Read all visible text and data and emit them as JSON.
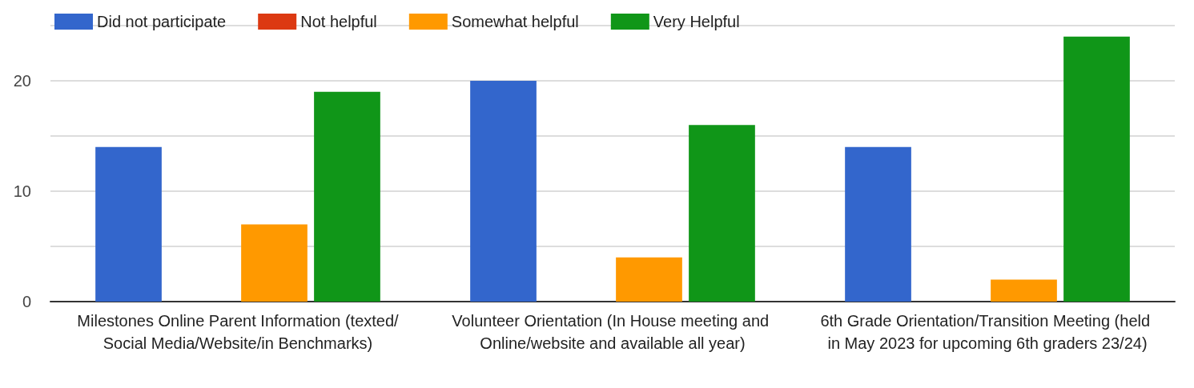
{
  "chart_data": {
    "type": "bar",
    "categories": [
      "Milestones Online Parent Information (texted/Social Media/Website/in Benchmarks)",
      "Volunteer Orientation (In House meeting and Online/website and available all year)",
      "6th Grade Orientation/Transition Meeting (held in May 2023 for upcoming 6th graders 23/24)"
    ],
    "series": [
      {
        "name": "Did not participate",
        "color": "#3366cc",
        "values": [
          14,
          20,
          14
        ]
      },
      {
        "name": "Not helpful",
        "color": "#dc3912",
        "values": [
          0,
          0,
          0
        ]
      },
      {
        "name": "Somewhat helpful",
        "color": "#ff9900",
        "values": [
          7,
          4,
          2
        ]
      },
      {
        "name": "Very Helpful",
        "color": "#109618",
        "values": [
          19,
          16,
          24
        ]
      }
    ],
    "ylim": [
      0,
      25
    ],
    "yticks": [
      0,
      {
        "value": 5,
        "label": null
      },
      10,
      {
        "value": 15,
        "label": null
      },
      20,
      {
        "value": 25,
        "label": null
      }
    ],
    "grid": "y",
    "legend": "top left"
  }
}
